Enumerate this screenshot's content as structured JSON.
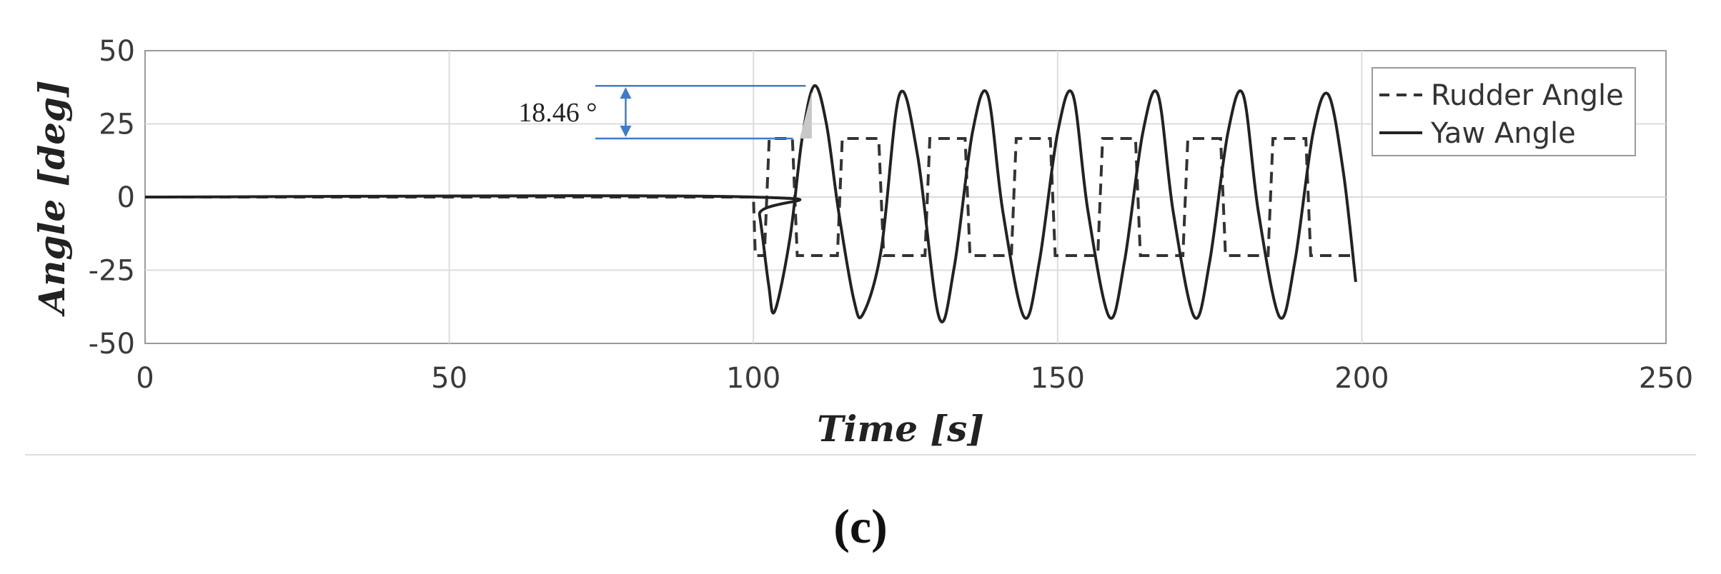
{
  "chart_data": {
    "type": "line",
    "xlabel": "Time [s]",
    "ylabel": "Angle  [deg]",
    "xlim": [
      0,
      250
    ],
    "ylim": [
      -50,
      50
    ],
    "xticks": [
      0,
      50,
      100,
      150,
      200,
      250
    ],
    "yticks": [
      -50,
      -25,
      0,
      25,
      50
    ],
    "grid": true,
    "legend_position": "top-right",
    "series": [
      {
        "name": "Rudder Angle",
        "style": "dashed",
        "color": "#333333",
        "x": [
          0,
          100,
          100.3,
          101.8,
          102.6,
          106.4,
          107.2,
          113.8,
          114.6,
          120.6,
          121.4,
          128.2,
          129,
          134.8,
          135.6,
          142.4,
          143.2,
          148.8,
          149.6,
          156.6,
          157.4,
          162.8,
          163.6,
          170.6,
          171.4,
          176.8,
          177.6,
          184.6,
          185.4,
          190.8,
          191.6,
          198.6
        ],
        "y": [
          0,
          0,
          -20,
          -20,
          20,
          20,
          -20,
          -20,
          20,
          20,
          -20,
          -20,
          20,
          20,
          -20,
          -20,
          20,
          20,
          -20,
          -20,
          20,
          20,
          -20,
          -20,
          20,
          20,
          -20,
          -20,
          20,
          20,
          -20,
          -20
        ]
      },
      {
        "name": "Yaw Angle",
        "style": "solid",
        "color": "#222222",
        "x": [
          0,
          100,
          101,
          102.5,
          103.5,
          106,
          108,
          110,
          112,
          114,
          116.5,
          118,
          121,
          124,
          127,
          130.5,
          133,
          136,
          138.5,
          141,
          144.5,
          147,
          150,
          152.5,
          155,
          158.5,
          161,
          164,
          166.5,
          169,
          172.5,
          175,
          178,
          180.5,
          183,
          186.5,
          189,
          192,
          194.5,
          197,
          199
        ],
        "y": [
          0,
          0,
          -6,
          -30,
          -39,
          -14,
          20,
          38,
          25,
          -5,
          -35,
          -40,
          -18,
          35,
          14,
          -41,
          -24,
          22,
          35,
          -5,
          -41,
          -22,
          22,
          35,
          -5,
          -41,
          -22,
          22,
          35,
          -5,
          -41,
          -22,
          22,
          35,
          -5,
          -41,
          -22,
          22,
          35,
          8,
          -29
        ]
      }
    ],
    "annotations": [
      {
        "text": "18.46 °",
        "type": "dimension",
        "from": 38,
        "to": 20,
        "x": 79
      }
    ],
    "panel_label": "(c)"
  }
}
